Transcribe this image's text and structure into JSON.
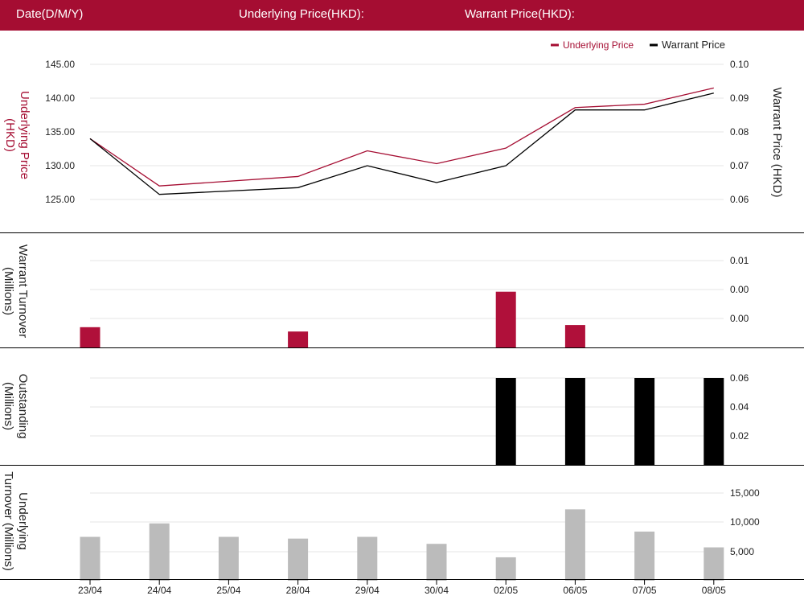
{
  "header": {
    "date_label": "Date(D/M/Y)",
    "underlying_label": "Underlying Price(HKD):",
    "warrant_label": "Warrant Price(HKD):"
  },
  "colors": {
    "brand": "#a50d32",
    "underlying_line": "#a50d32",
    "warrant_line": "#000000",
    "warrant_turnover_bar": "#b0103a",
    "outstanding_bar": "#000000",
    "underlying_turnover_bar": "#bbbbbb",
    "gridline": "#e6e6e6"
  },
  "chart_data": [
    {
      "type": "line",
      "legend_position": "top-right",
      "categories": [
        "23/04",
        "24/04",
        "25/04",
        "28/04",
        "29/04",
        "30/04",
        "02/05",
        "06/05",
        "07/05",
        "08/05"
      ],
      "ylabel_left": "Underlying Price (HKD)",
      "ylabel_right": "Warrant Price (HKD)",
      "ylim_left": [
        122,
        146
      ],
      "yticks_left": [
        "125.00",
        "130.00",
        "135.00",
        "140.00",
        "145.00"
      ],
      "ylim_right": [
        0.054,
        0.102
      ],
      "yticks_right": [
        "0.06",
        "0.07",
        "0.08",
        "0.09",
        "0.10"
      ],
      "grid": true,
      "series": [
        {
          "name": "Underlying Price",
          "axis": "left",
          "values": [
            134,
            127,
            null,
            128.4,
            132.2,
            130.3,
            132.6,
            138.6,
            139.1,
            141.5
          ]
        },
        {
          "name": "Warrant Price",
          "axis": "right",
          "values": [
            0.078,
            0.0615,
            null,
            0.0635,
            0.07,
            0.065,
            0.07,
            0.0865,
            0.0865,
            0.0915
          ]
        }
      ]
    },
    {
      "type": "bar",
      "categories": [
        "23/04",
        "24/04",
        "25/04",
        "28/04",
        "29/04",
        "30/04",
        "02/05",
        "06/05",
        "07/05",
        "08/05"
      ],
      "ylabel": "Warrant Turnover (Millions)",
      "ylim": [
        0,
        0.012
      ],
      "yticks": [
        "0.00",
        "0.00",
        "0.01"
      ],
      "grid": true,
      "values": [
        0.0028,
        0,
        0,
        0.0022,
        0,
        0,
        0.0077,
        0.0031,
        0,
        0
      ]
    },
    {
      "type": "bar",
      "categories": [
        "23/04",
        "24/04",
        "25/04",
        "28/04",
        "29/04",
        "30/04",
        "02/05",
        "06/05",
        "07/05",
        "08/05"
      ],
      "ylabel": "Outstanding (Millions)",
      "ylim": [
        0,
        0.06
      ],
      "yticks": [
        "0.02",
        "0.04",
        "0.06"
      ],
      "grid": true,
      "values": [
        0,
        0,
        0,
        0,
        0,
        0,
        0.06,
        0.06,
        0.06,
        0.06
      ]
    },
    {
      "type": "bar",
      "categories": [
        "23/04",
        "24/04",
        "25/04",
        "28/04",
        "29/04",
        "30/04",
        "02/05",
        "06/05",
        "07/05",
        "08/05"
      ],
      "ylabel": "Underlying Turnover (Millions)",
      "ylim": [
        0,
        15000
      ],
      "yticks": [
        "5,000",
        "10,000",
        "15,000"
      ],
      "grid": true,
      "values": [
        7500,
        9800,
        7500,
        7200,
        7500,
        6300,
        4000,
        12200,
        8400,
        5700
      ]
    }
  ]
}
